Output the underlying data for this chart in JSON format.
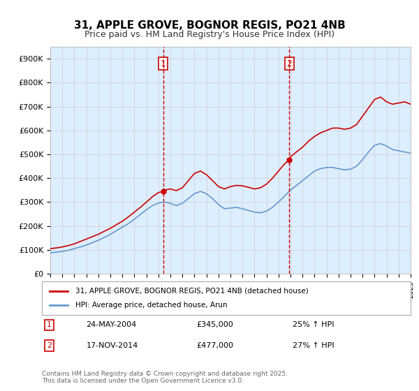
{
  "title": "31, APPLE GROVE, BOGNOR REGIS, PO21 4NB",
  "subtitle": "Price paid vs. HM Land Registry's House Price Index (HPI)",
  "legend_line1": "31, APPLE GROVE, BOGNOR REGIS, PO21 4NB (detached house)",
  "legend_line2": "HPI: Average price, detached house, Arun",
  "footnote": "Contains HM Land Registry data © Crown copyright and database right 2025.\nThis data is licensed under the Open Government Licence v3.0.",
  "transaction1_label": "1",
  "transaction1_date": "24-MAY-2004",
  "transaction1_price": "£345,000",
  "transaction1_hpi": "25% ↑ HPI",
  "transaction2_label": "2",
  "transaction2_date": "17-NOV-2014",
  "transaction2_price": "£477,000",
  "transaction2_hpi": "27% ↑ HPI",
  "red_color": "#cc0000",
  "blue_color": "#6699cc",
  "vline_color": "#cc0000",
  "grid_color": "#cccccc",
  "bg_color": "#ddeeff",
  "ylim_max": 950000,
  "ylim_min": 0,
  "year_start": 1995,
  "year_end": 2025,
  "vline1_year": 2004.4,
  "vline2_year": 2014.9,
  "red_series_x": [
    1995.0,
    1995.5,
    1996.0,
    1996.5,
    1997.0,
    1997.5,
    1998.0,
    1998.5,
    1999.0,
    1999.5,
    2000.0,
    2000.5,
    2001.0,
    2001.5,
    2002.0,
    2002.5,
    2003.0,
    2003.5,
    2004.0,
    2004.4,
    2004.5,
    2005.0,
    2005.5,
    2006.0,
    2006.5,
    2007.0,
    2007.5,
    2008.0,
    2008.5,
    2009.0,
    2009.5,
    2010.0,
    2010.5,
    2011.0,
    2011.5,
    2012.0,
    2012.5,
    2013.0,
    2013.5,
    2014.0,
    2014.5,
    2014.9,
    2015.0,
    2015.5,
    2016.0,
    2016.5,
    2017.0,
    2017.5,
    2018.0,
    2018.5,
    2019.0,
    2019.5,
    2020.0,
    2020.5,
    2021.0,
    2021.5,
    2022.0,
    2022.5,
    2023.0,
    2023.5,
    2024.0,
    2024.5,
    2025.0
  ],
  "red_series_y": [
    105000,
    108000,
    112000,
    118000,
    125000,
    135000,
    145000,
    155000,
    165000,
    178000,
    190000,
    205000,
    220000,
    238000,
    258000,
    278000,
    300000,
    322000,
    340000,
    345000,
    350000,
    355000,
    348000,
    360000,
    390000,
    420000,
    430000,
    415000,
    390000,
    365000,
    355000,
    365000,
    370000,
    368000,
    362000,
    355000,
    360000,
    375000,
    400000,
    430000,
    460000,
    477000,
    490000,
    510000,
    530000,
    555000,
    575000,
    590000,
    600000,
    610000,
    610000,
    605000,
    610000,
    625000,
    660000,
    695000,
    730000,
    740000,
    720000,
    710000,
    715000,
    720000,
    710000
  ],
  "blue_series_x": [
    1995.0,
    1995.5,
    1996.0,
    1996.5,
    1997.0,
    1997.5,
    1998.0,
    1998.5,
    1999.0,
    1999.5,
    2000.0,
    2000.5,
    2001.0,
    2001.5,
    2002.0,
    2002.5,
    2003.0,
    2003.5,
    2004.0,
    2004.5,
    2005.0,
    2005.5,
    2006.0,
    2006.5,
    2007.0,
    2007.5,
    2008.0,
    2008.5,
    2009.0,
    2009.5,
    2010.0,
    2010.5,
    2011.0,
    2011.5,
    2012.0,
    2012.5,
    2013.0,
    2013.5,
    2014.0,
    2014.5,
    2015.0,
    2015.5,
    2016.0,
    2016.5,
    2017.0,
    2017.5,
    2018.0,
    2018.5,
    2019.0,
    2019.5,
    2020.0,
    2020.5,
    2021.0,
    2021.5,
    2022.0,
    2022.5,
    2023.0,
    2023.5,
    2024.0,
    2024.5,
    2025.0
  ],
  "blue_series_y": [
    88000,
    90000,
    93000,
    98000,
    105000,
    112000,
    120000,
    130000,
    140000,
    152000,
    165000,
    180000,
    195000,
    210000,
    228000,
    248000,
    268000,
    285000,
    296000,
    300000,
    295000,
    285000,
    295000,
    315000,
    335000,
    345000,
    335000,
    315000,
    290000,
    272000,
    275000,
    278000,
    272000,
    265000,
    258000,
    255000,
    262000,
    278000,
    300000,
    325000,
    350000,
    370000,
    390000,
    410000,
    430000,
    440000,
    445000,
    445000,
    440000,
    435000,
    438000,
    450000,
    478000,
    510000,
    538000,
    545000,
    535000,
    520000,
    515000,
    510000,
    505000
  ]
}
